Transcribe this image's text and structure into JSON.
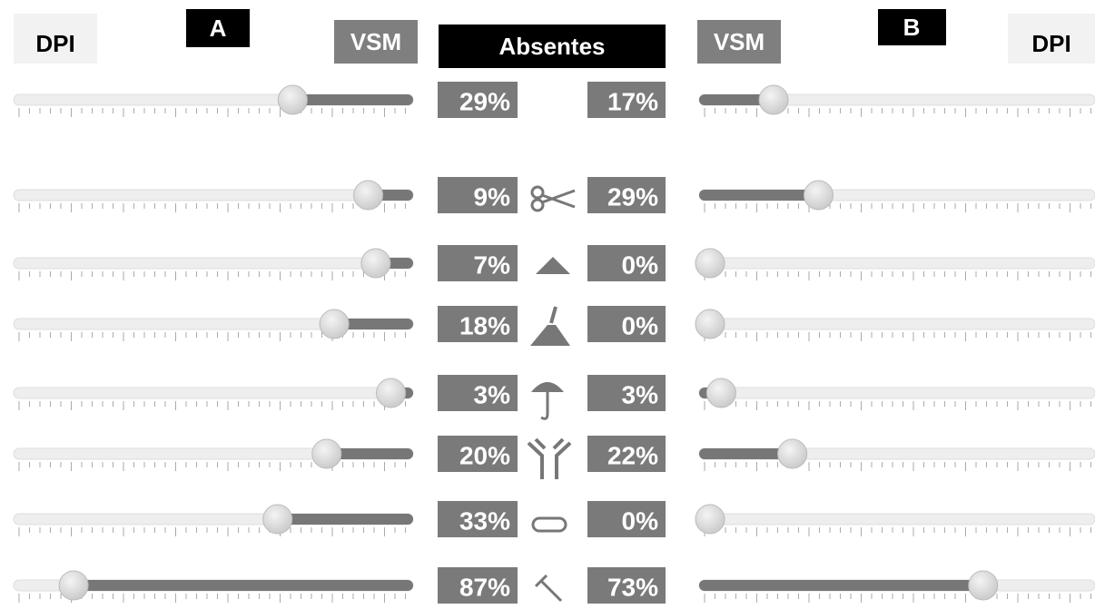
{
  "header": {
    "left_dpi": "DPI",
    "a": "A",
    "left_vsm": "VSM",
    "center": "Absentes",
    "right_vsm": "VSM",
    "b": "B",
    "right_dpi": "DPI"
  },
  "rows": [
    {
      "a": {
        "value": 29,
        "label": "29%"
      },
      "b": {
        "value": 17,
        "label": "17%"
      }
    },
    {
      "a": {
        "value": 9,
        "label": "9%"
      },
      "b": {
        "value": 29,
        "label": "29%"
      }
    },
    {
      "a": {
        "value": 7,
        "label": "7%"
      },
      "b": {
        "value": 0,
        "label": "0%"
      }
    },
    {
      "a": {
        "value": 18,
        "label": "18%"
      },
      "b": {
        "value": 0,
        "label": "0%"
      }
    },
    {
      "a": {
        "value": 3,
        "label": "3%"
      },
      "b": {
        "value": 3,
        "label": "3%"
      }
    },
    {
      "a": {
        "value": 20,
        "label": "20%"
      },
      "b": {
        "value": 22,
        "label": "22%"
      }
    },
    {
      "a": {
        "value": 33,
        "label": "33%"
      },
      "b": {
        "value": 0,
        "label": "0%"
      }
    },
    {
      "a": {
        "value": 87,
        "label": "87%"
      },
      "b": {
        "value": 73,
        "label": "73%"
      }
    }
  ]
}
